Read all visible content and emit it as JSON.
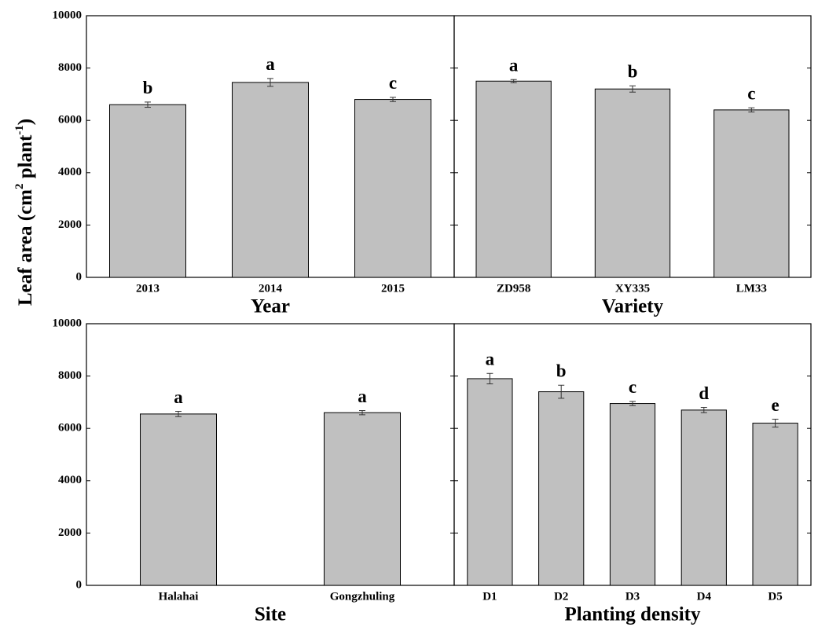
{
  "chart_data": [
    {
      "type": "bar",
      "ylabel": [
        "Leaf area (cm",
        "2",
        " plant",
        "-1",
        ")"
      ],
      "xlabel": "Year",
      "categories": [
        "2013",
        "2014",
        "2015"
      ],
      "values": [
        6600,
        7450,
        6800
      ],
      "errors": [
        100,
        150,
        80
      ],
      "letters": [
        "b",
        "a",
        "c"
      ],
      "color": "#c0c0c0",
      "ylim": [
        0,
        10000
      ],
      "yticks": [
        0,
        2000,
        4000,
        6000,
        8000,
        10000
      ]
    },
    {
      "type": "bar",
      "xlabel": "Variety",
      "categories": [
        "ZD958",
        "XY335",
        "LM33"
      ],
      "values": [
        7500,
        7200,
        6400
      ],
      "errors": [
        60,
        120,
        80
      ],
      "letters": [
        "a",
        "b",
        "c"
      ],
      "color": "#c0c0c0",
      "ylim": [
        0,
        10000
      ],
      "yticks": [
        0,
        2000,
        4000,
        6000,
        8000,
        10000
      ]
    },
    {
      "type": "bar",
      "xlabel": "Site",
      "categories": [
        "Halahai",
        "Gongzhuling"
      ],
      "values": [
        6550,
        6600
      ],
      "errors": [
        100,
        80
      ],
      "letters": [
        "a",
        "a"
      ],
      "color": "#c0c0c0",
      "ylim": [
        0,
        10000
      ],
      "yticks": [
        0,
        2000,
        4000,
        6000,
        8000,
        10000
      ]
    },
    {
      "type": "bar",
      "xlabel": "Planting density",
      "categories": [
        "D1",
        "D2",
        "D3",
        "D4",
        "D5"
      ],
      "values": [
        7900,
        7400,
        6950,
        6700,
        6200
      ],
      "errors": [
        200,
        250,
        80,
        100,
        150
      ],
      "letters": [
        "a",
        "b",
        "c",
        "d",
        "e"
      ],
      "color": "#c0c0c0",
      "ylim": [
        0,
        10000
      ],
      "yticks": [
        0,
        2000,
        4000,
        6000,
        8000,
        10000
      ]
    }
  ]
}
